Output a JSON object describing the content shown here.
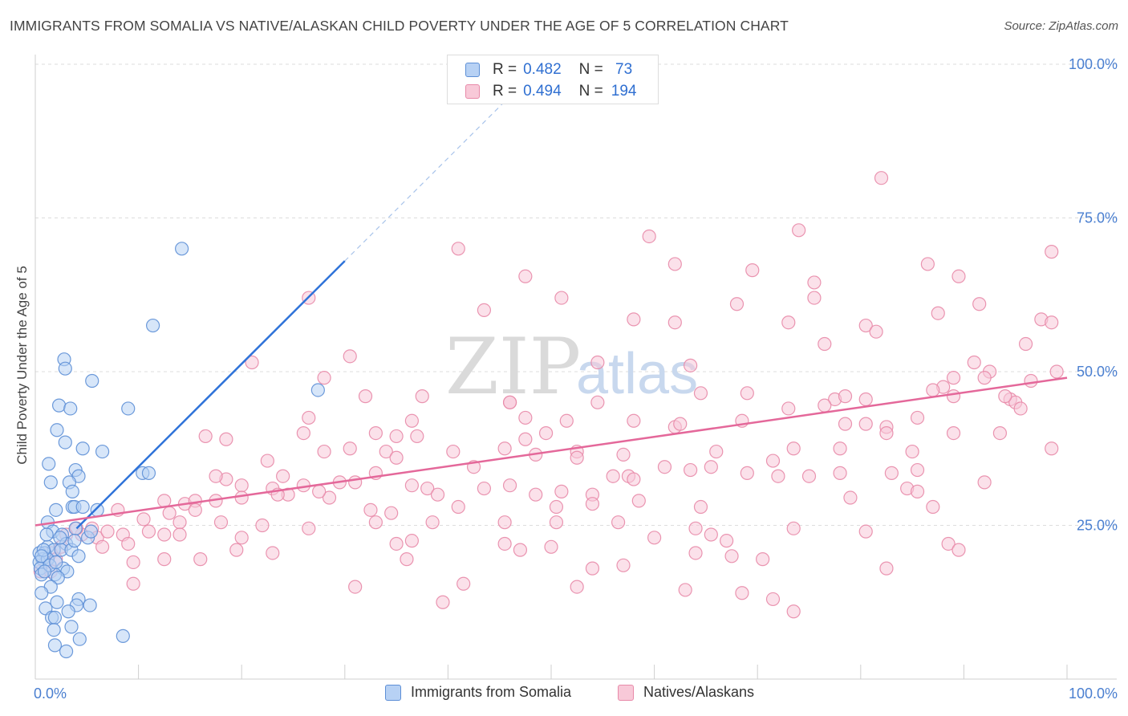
{
  "title": "IMMIGRANTS FROM SOMALIA VS NATIVE/ALASKAN CHILD POVERTY UNDER THE AGE OF 5 CORRELATION CHART",
  "source": "Source: ZipAtlas.com",
  "watermark": {
    "zip": "ZIP",
    "atlas": "atlas"
  },
  "legend_top": {
    "rows": [
      {
        "r_label": "R =",
        "r_value": "0.482",
        "n_label": "N =",
        "n_value": " 73"
      },
      {
        "r_label": "R =",
        "r_value": "0.494",
        "n_label": "N =",
        "n_value": "194"
      }
    ]
  },
  "legend_bottom": {
    "items": [
      {
        "label": "Immigrants from Somalia"
      },
      {
        "label": "Natives/Alaskans"
      }
    ]
  },
  "chart_data": {
    "type": "scatter",
    "title": "IMMIGRANTS FROM SOMALIA VS NATIVE/ALASKAN CHILD POVERTY UNDER THE AGE OF 5 CORRELATION CHART",
    "xlabel": "",
    "ylabel": "Child Poverty Under the Age of 5",
    "xlim": [
      0,
      100
    ],
    "ylim": [
      0,
      100
    ],
    "x_tick_labels": [
      "0.0%",
      "100.0%"
    ],
    "y_tick_labels": [
      "25.0%",
      "50.0%",
      "75.0%",
      "100.0%"
    ],
    "y_ticks": [
      25,
      50,
      75,
      100
    ],
    "grid": true,
    "colors": {
      "somalia_fill": "#b7d1f4",
      "somalia_stroke": "#5d8fd6",
      "somalia_line": "#2f73d9",
      "natives_fill": "#f8c9d8",
      "natives_stroke": "#e88aa9",
      "natives_line": "#e4689a",
      "tick_label": "#4a7fd0"
    },
    "series": [
      {
        "name": "Immigrants from Somalia",
        "R": 0.482,
        "N": 73,
        "trend": {
          "x0": 4.0,
          "y0": 24.5,
          "x1": 30.0,
          "y1": 68.0,
          "dash_to_x": 46.0
        },
        "points": [
          [
            14.2,
            70.0
          ],
          [
            11.4,
            57.5
          ],
          [
            2.8,
            52.0
          ],
          [
            2.9,
            50.5
          ],
          [
            5.5,
            48.5
          ],
          [
            27.4,
            47.0
          ],
          [
            2.3,
            44.5
          ],
          [
            3.4,
            44.0
          ],
          [
            9.0,
            44.0
          ],
          [
            2.1,
            40.5
          ],
          [
            2.9,
            38.5
          ],
          [
            4.6,
            37.5
          ],
          [
            6.5,
            37.0
          ],
          [
            1.3,
            35.0
          ],
          [
            10.4,
            33.5
          ],
          [
            3.9,
            34.0
          ],
          [
            11.0,
            33.5
          ],
          [
            4.2,
            33.0
          ],
          [
            1.5,
            32.0
          ],
          [
            3.3,
            32.0
          ],
          [
            3.6,
            30.5
          ],
          [
            3.6,
            28.0
          ],
          [
            3.8,
            28.0
          ],
          [
            4.6,
            28.0
          ],
          [
            6.0,
            27.5
          ],
          [
            2.0,
            27.5
          ],
          [
            1.2,
            25.5
          ],
          [
            3.9,
            24.5
          ],
          [
            1.7,
            24.0
          ],
          [
            2.6,
            23.5
          ],
          [
            5.1,
            23.0
          ],
          [
            3.0,
            22.0
          ],
          [
            1.2,
            21.5
          ],
          [
            1.8,
            21.0
          ],
          [
            2.5,
            21.0
          ],
          [
            3.5,
            21.0
          ],
          [
            0.4,
            20.5
          ],
          [
            0.9,
            20.5
          ],
          [
            0.7,
            19.5
          ],
          [
            0.4,
            19.0
          ],
          [
            1.2,
            19.5
          ],
          [
            4.2,
            20.0
          ],
          [
            0.5,
            18.0
          ],
          [
            2.7,
            18.0
          ],
          [
            3.1,
            17.5
          ],
          [
            0.6,
            17.0
          ],
          [
            1.9,
            17.0
          ],
          [
            2.2,
            16.5
          ],
          [
            1.5,
            15.0
          ],
          [
            0.6,
            14.0
          ],
          [
            4.2,
            13.0
          ],
          [
            2.1,
            12.5
          ],
          [
            4.0,
            12.0
          ],
          [
            1.0,
            11.5
          ],
          [
            5.3,
            12.0
          ],
          [
            3.2,
            11.0
          ],
          [
            1.6,
            10.0
          ],
          [
            1.9,
            10.0
          ],
          [
            3.5,
            8.5
          ],
          [
            1.8,
            8.0
          ],
          [
            4.3,
            6.5
          ],
          [
            1.9,
            5.5
          ],
          [
            3.0,
            4.5
          ],
          [
            8.5,
            7.0
          ],
          [
            1.1,
            23.5
          ],
          [
            0.8,
            21.0
          ],
          [
            2.4,
            23.0
          ],
          [
            3.8,
            22.5
          ],
          [
            5.4,
            24.0
          ],
          [
            0.6,
            20.0
          ],
          [
            1.4,
            18.5
          ],
          [
            2.0,
            19.0
          ],
          [
            0.9,
            17.5
          ]
        ]
      },
      {
        "name": "Natives/Alaskans",
        "R": 0.494,
        "N": 194,
        "trend": {
          "x0": 0.0,
          "y0": 25.0,
          "x1": 100.0,
          "y1": 49.0
        },
        "points": [
          [
            82.0,
            81.5
          ],
          [
            74.0,
            73.0
          ],
          [
            59.5,
            72.0
          ],
          [
            98.5,
            69.5
          ],
          [
            41.0,
            70.0
          ],
          [
            62.0,
            67.5
          ],
          [
            69.5,
            66.5
          ],
          [
            86.5,
            67.5
          ],
          [
            89.5,
            65.5
          ],
          [
            47.5,
            65.5
          ],
          [
            75.5,
            64.5
          ],
          [
            26.5,
            62.0
          ],
          [
            51.0,
            62.0
          ],
          [
            75.5,
            62.0
          ],
          [
            68.0,
            61.0
          ],
          [
            91.5,
            61.0
          ],
          [
            43.5,
            60.0
          ],
          [
            87.5,
            59.5
          ],
          [
            58.0,
            58.5
          ],
          [
            62.0,
            58.0
          ],
          [
            73.0,
            58.0
          ],
          [
            80.5,
            57.5
          ],
          [
            81.5,
            56.5
          ],
          [
            97.5,
            58.5
          ],
          [
            98.5,
            58.0
          ],
          [
            76.5,
            54.5
          ],
          [
            96.0,
            54.5
          ],
          [
            30.5,
            52.5
          ],
          [
            21.0,
            51.5
          ],
          [
            54.5,
            51.5
          ],
          [
            63.5,
            51.0
          ],
          [
            91.0,
            51.5
          ],
          [
            92.5,
            50.0
          ],
          [
            99.0,
            50.0
          ],
          [
            28.0,
            49.0
          ],
          [
            89.0,
            49.0
          ],
          [
            92.0,
            49.0
          ],
          [
            96.5,
            48.5
          ],
          [
            88.0,
            47.5
          ],
          [
            87.0,
            47.0
          ],
          [
            69.0,
            46.5
          ],
          [
            64.5,
            46.5
          ],
          [
            77.5,
            45.5
          ],
          [
            78.5,
            46.0
          ],
          [
            80.5,
            45.5
          ],
          [
            32.0,
            46.0
          ],
          [
            46.0,
            45.0
          ],
          [
            54.5,
            45.0
          ],
          [
            46.0,
            45.0
          ],
          [
            37.5,
            46.0
          ],
          [
            89.0,
            46.0
          ],
          [
            94.5,
            45.5
          ],
          [
            95.0,
            45.0
          ],
          [
            94.0,
            46.0
          ],
          [
            95.5,
            44.0
          ],
          [
            73.0,
            44.0
          ],
          [
            76.5,
            44.5
          ],
          [
            26.5,
            42.5
          ],
          [
            36.5,
            42.0
          ],
          [
            47.5,
            42.5
          ],
          [
            51.5,
            42.0
          ],
          [
            58.0,
            42.0
          ],
          [
            62.0,
            41.0
          ],
          [
            62.5,
            41.5
          ],
          [
            68.5,
            42.0
          ],
          [
            78.5,
            41.5
          ],
          [
            80.5,
            41.5
          ],
          [
            82.5,
            41.0
          ],
          [
            85.5,
            42.5
          ],
          [
            33.0,
            40.0
          ],
          [
            35.0,
            39.5
          ],
          [
            49.5,
            40.0
          ],
          [
            26.0,
            40.0
          ],
          [
            37.0,
            39.5
          ],
          [
            47.5,
            39.0
          ],
          [
            82.5,
            40.0
          ],
          [
            89.0,
            40.0
          ],
          [
            93.5,
            40.0
          ],
          [
            16.5,
            39.5
          ],
          [
            18.5,
            39.0
          ],
          [
            28.0,
            37.0
          ],
          [
            30.5,
            37.5
          ],
          [
            34.0,
            37.0
          ],
          [
            40.5,
            37.0
          ],
          [
            45.5,
            37.5
          ],
          [
            52.5,
            37.0
          ],
          [
            57.0,
            36.5
          ],
          [
            66.0,
            37.0
          ],
          [
            73.5,
            37.5
          ],
          [
            78.0,
            37.5
          ],
          [
            85.0,
            37.0
          ],
          [
            98.5,
            37.5
          ],
          [
            35.0,
            36.0
          ],
          [
            42.5,
            34.5
          ],
          [
            48.5,
            36.5
          ],
          [
            52.5,
            36.0
          ],
          [
            61.0,
            34.5
          ],
          [
            71.5,
            35.5
          ],
          [
            22.5,
            35.5
          ],
          [
            24.0,
            33.0
          ],
          [
            26.0,
            31.5
          ],
          [
            18.5,
            32.5
          ],
          [
            20.0,
            31.5
          ],
          [
            23.0,
            31.0
          ],
          [
            24.5,
            30.0
          ],
          [
            29.5,
            32.0
          ],
          [
            31.0,
            32.0
          ],
          [
            33.0,
            33.5
          ],
          [
            36.5,
            31.5
          ],
          [
            38.0,
            31.0
          ],
          [
            39.0,
            30.0
          ],
          [
            43.5,
            31.0
          ],
          [
            46.0,
            31.5
          ],
          [
            48.5,
            30.0
          ],
          [
            51.0,
            30.5
          ],
          [
            54.0,
            30.0
          ],
          [
            56.0,
            33.0
          ],
          [
            57.5,
            33.0
          ],
          [
            58.0,
            32.5
          ],
          [
            63.5,
            34.0
          ],
          [
            65.5,
            34.5
          ],
          [
            69.0,
            33.5
          ],
          [
            72.0,
            33.0
          ],
          [
            75.0,
            33.0
          ],
          [
            78.0,
            33.5
          ],
          [
            83.0,
            33.5
          ],
          [
            85.5,
            34.0
          ],
          [
            92.0,
            32.0
          ],
          [
            17.5,
            33.0
          ],
          [
            28.5,
            29.5
          ],
          [
            14.5,
            28.5
          ],
          [
            15.5,
            29.0
          ],
          [
            12.5,
            29.0
          ],
          [
            17.5,
            29.0
          ],
          [
            20.0,
            29.5
          ],
          [
            23.5,
            30.0
          ],
          [
            27.5,
            30.5
          ],
          [
            32.5,
            27.5
          ],
          [
            34.5,
            27.0
          ],
          [
            41.0,
            28.0
          ],
          [
            50.5,
            28.0
          ],
          [
            54.0,
            28.5
          ],
          [
            58.5,
            29.0
          ],
          [
            64.5,
            28.0
          ],
          [
            79.0,
            29.5
          ],
          [
            84.5,
            31.0
          ],
          [
            85.5,
            30.5
          ],
          [
            87.0,
            28.0
          ],
          [
            8.0,
            27.5
          ],
          [
            10.5,
            26.0
          ],
          [
            13.0,
            27.0
          ],
          [
            15.5,
            27.5
          ],
          [
            14.0,
            25.5
          ],
          [
            18.0,
            25.5
          ],
          [
            8.5,
            23.5
          ],
          [
            11.0,
            24.0
          ],
          [
            12.5,
            23.5
          ],
          [
            9.0,
            22.0
          ],
          [
            5.5,
            24.5
          ],
          [
            4.5,
            23.5
          ],
          [
            6.0,
            23.0
          ],
          [
            7.0,
            24.0
          ],
          [
            4.0,
            24.5
          ],
          [
            3.0,
            23.5
          ],
          [
            2.5,
            21.5
          ],
          [
            1.5,
            20.5
          ],
          [
            1.0,
            19.0
          ],
          [
            2.0,
            19.5
          ],
          [
            0.5,
            17.5
          ],
          [
            1.5,
            17.5
          ],
          [
            22.0,
            25.0
          ],
          [
            26.5,
            24.5
          ],
          [
            33.0,
            25.5
          ],
          [
            38.5,
            25.5
          ],
          [
            45.5,
            25.5
          ],
          [
            50.5,
            25.5
          ],
          [
            56.5,
            25.5
          ],
          [
            60.0,
            23.0
          ],
          [
            64.0,
            24.5
          ],
          [
            65.5,
            23.5
          ],
          [
            67.0,
            22.5
          ],
          [
            73.5,
            24.5
          ],
          [
            80.5,
            24.0
          ],
          [
            88.5,
            22.0
          ],
          [
            20.0,
            23.0
          ],
          [
            14.0,
            23.5
          ],
          [
            19.5,
            21.0
          ],
          [
            35.0,
            22.0
          ],
          [
            36.5,
            22.5
          ],
          [
            45.5,
            22.0
          ],
          [
            47.0,
            21.0
          ],
          [
            50.0,
            21.5
          ],
          [
            64.0,
            20.5
          ],
          [
            67.5,
            20.0
          ],
          [
            70.5,
            19.5
          ],
          [
            89.5,
            21.0
          ],
          [
            6.5,
            21.5
          ],
          [
            9.5,
            19.0
          ],
          [
            12.5,
            19.5
          ],
          [
            16.0,
            19.5
          ],
          [
            23.0,
            20.5
          ],
          [
            36.0,
            19.5
          ],
          [
            54.0,
            18.0
          ],
          [
            57.0,
            18.5
          ],
          [
            82.5,
            18.0
          ],
          [
            31.0,
            15.0
          ],
          [
            41.5,
            15.5
          ],
          [
            52.5,
            15.0
          ],
          [
            63.0,
            14.5
          ],
          [
            68.5,
            14.0
          ],
          [
            71.5,
            13.0
          ],
          [
            73.5,
            11.0
          ],
          [
            39.5,
            12.5
          ],
          [
            9.5,
            15.5
          ]
        ]
      }
    ]
  }
}
